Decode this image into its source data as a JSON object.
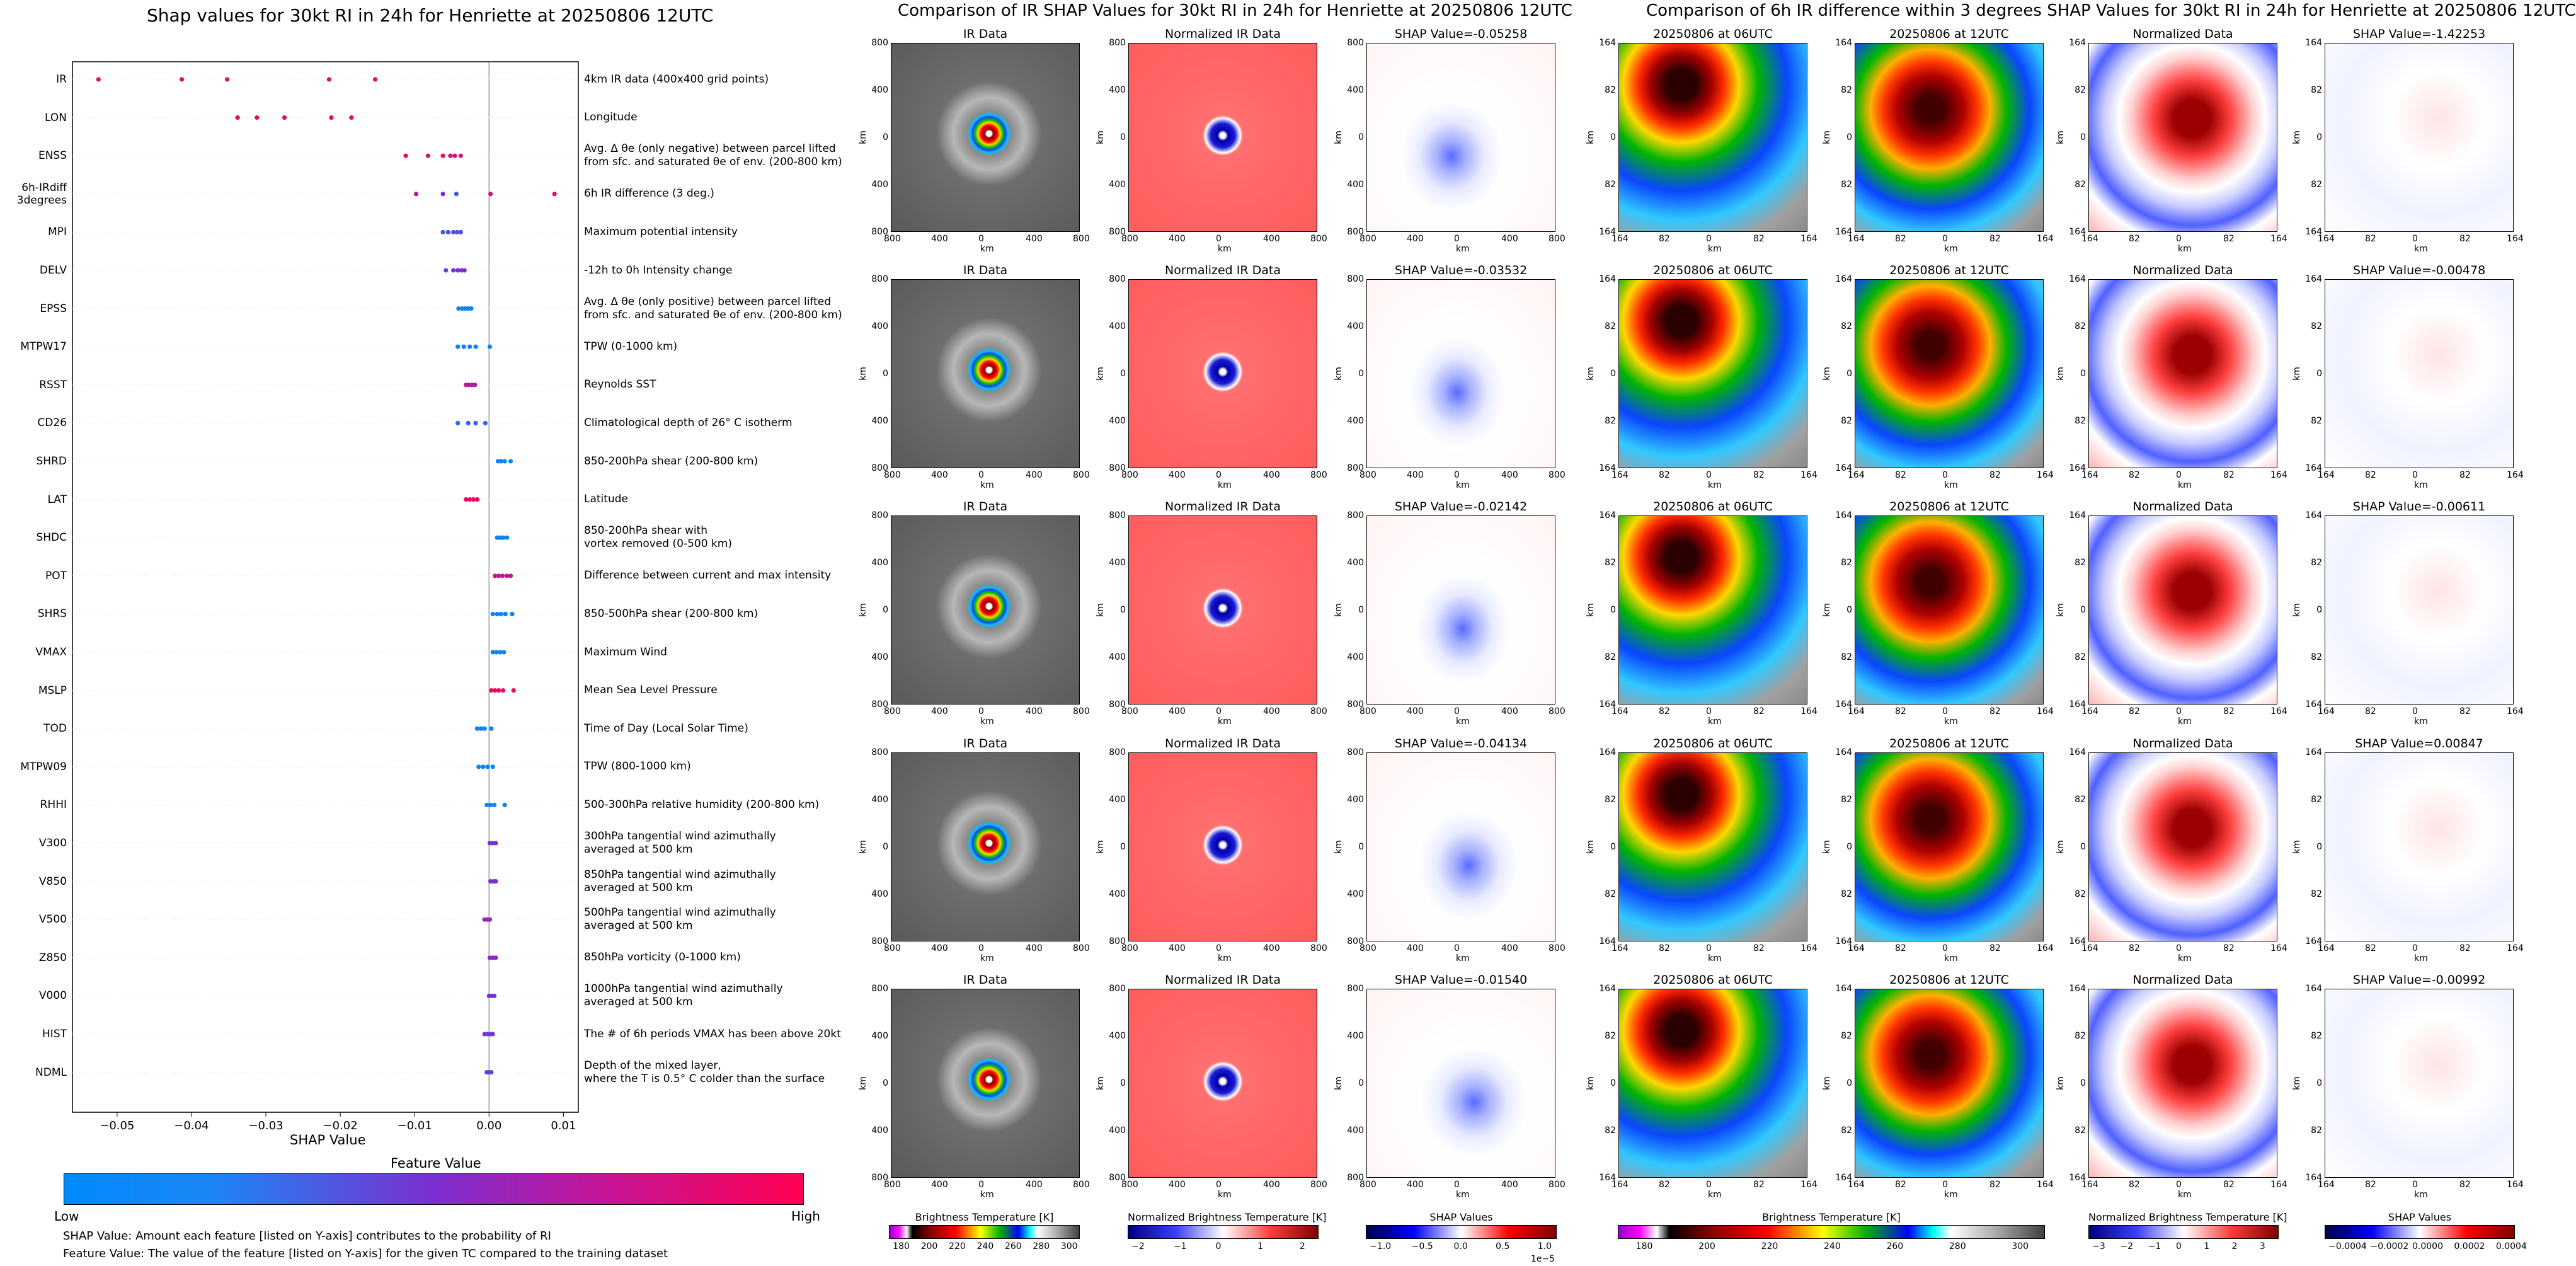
{
  "left_chart": {
    "title": "Shap values for 30kt RI in 24h for Henriette at 20250806 12UTC",
    "xlabel": "SHAP Value",
    "xticks": [
      "−0.05",
      "−0.04",
      "−0.03",
      "−0.02",
      "−0.01",
      "0.00",
      "0.01"
    ],
    "legend_title": "Feature Value",
    "legend_low": "Low",
    "legend_high": "High",
    "note1": "SHAP Value: Amount each feature [listed on Y-axis] contributes to the probability of RI",
    "note2": "Feature Value: The value of the feature [listed on Y-axis] for the given TC compared to the training dataset"
  },
  "chart_data": {
    "type": "scatter",
    "title": "Shap values for 30kt RI in 24h for Henriette at 20250806 12UTC",
    "xlabel": "SHAP Value",
    "xlim": [
      -0.056,
      0.012
    ],
    "grid": false,
    "colorbar": {
      "title": "Feature Value",
      "low": "Low",
      "high": "High",
      "low_color": "#008bfb",
      "high_color": "#ff0052"
    },
    "features": [
      {
        "name": "IR",
        "desc": "4km IR data (400x400 grid points)",
        "points": [
          [
            -0.0525,
            0.9
          ],
          [
            -0.0413,
            0.9
          ],
          [
            -0.0352,
            0.9
          ],
          [
            -0.0215,
            0.9
          ],
          [
            -0.0153,
            0.9
          ]
        ]
      },
      {
        "name": "LON",
        "desc": "Longitude",
        "points": [
          [
            -0.0338,
            0.9
          ],
          [
            -0.0312,
            0.9
          ],
          [
            -0.0275,
            0.9
          ],
          [
            -0.0212,
            0.9
          ],
          [
            -0.0185,
            0.9
          ]
        ]
      },
      {
        "name": "ENSS",
        "desc": "Avg. Δ θe (only negative) between parcel lifted\nfrom sfc. and saturated θe of env. (200-800 km)",
        "points": [
          [
            -0.0112,
            0.95
          ],
          [
            -0.0082,
            0.9
          ],
          [
            -0.0062,
            0.9
          ],
          [
            -0.0052,
            0.85
          ],
          [
            -0.0046,
            0.85
          ],
          [
            -0.0038,
            0.8
          ]
        ]
      },
      {
        "name": "6h-IRdiff\n3degrees",
        "desc": "6h IR difference (3 deg.)",
        "points": [
          [
            -0.0098,
            0.7
          ],
          [
            -0.0062,
            0.5
          ],
          [
            -0.0044,
            0.3
          ],
          [
            0.0002,
            0.85
          ],
          [
            0.0088,
            0.9
          ]
        ]
      },
      {
        "name": "MPI",
        "desc": "Maximum potential intensity",
        "points": [
          [
            -0.0062,
            0.3
          ],
          [
            -0.0055,
            0.3
          ],
          [
            -0.0048,
            0.3
          ],
          [
            -0.0043,
            0.3
          ],
          [
            -0.0038,
            0.3
          ]
        ]
      },
      {
        "name": "DELV",
        "desc": "-12h to 0h Intensity change",
        "points": [
          [
            -0.0058,
            0.4
          ],
          [
            -0.0048,
            0.5
          ],
          [
            -0.0042,
            0.5
          ],
          [
            -0.0037,
            0.5
          ],
          [
            -0.0033,
            0.5
          ]
        ]
      },
      {
        "name": "EPSS",
        "desc": "Avg. Δ θe (only positive) between parcel lifted\nfrom sfc. and saturated θe of env. (200-800 km)",
        "points": [
          [
            -0.0041,
            0.05
          ],
          [
            -0.0036,
            0.05
          ],
          [
            -0.0032,
            0.05
          ],
          [
            -0.0028,
            0.05
          ],
          [
            -0.0024,
            0.05
          ]
        ]
      },
      {
        "name": "MTPW17",
        "desc": "TPW (0-1000 km)",
        "points": [
          [
            -0.0042,
            0.05
          ],
          [
            -0.0034,
            0.05
          ],
          [
            -0.0026,
            0.05
          ],
          [
            -0.0018,
            0.05
          ],
          [
            0.0001,
            0.05
          ]
        ]
      },
      {
        "name": "RSST",
        "desc": "Reynolds SST",
        "points": [
          [
            -0.0031,
            0.7
          ],
          [
            -0.0027,
            0.7
          ],
          [
            -0.0023,
            0.7
          ],
          [
            -0.0019,
            0.7
          ]
        ]
      },
      {
        "name": "CD26",
        "desc": "Climatological depth of 26° C isotherm",
        "points": [
          [
            -0.0042,
            0.2
          ],
          [
            -0.0028,
            0.2
          ],
          [
            -0.0018,
            0.2
          ],
          [
            -0.0005,
            0.2
          ]
        ]
      },
      {
        "name": "SHRD",
        "desc": "850-200hPa shear (200-800 km)",
        "points": [
          [
            0.0012,
            0.05
          ],
          [
            0.0016,
            0.05
          ],
          [
            0.0021,
            0.05
          ],
          [
            0.0029,
            0.05
          ]
        ]
      },
      {
        "name": "LAT",
        "desc": "Latitude",
        "points": [
          [
            -0.0031,
            0.95
          ],
          [
            -0.0026,
            0.95
          ],
          [
            -0.0021,
            0.95
          ],
          [
            -0.0016,
            0.95
          ]
        ]
      },
      {
        "name": "SHDC",
        "desc": "850-200hPa shear with\nvortex removed (0-500 km)",
        "points": [
          [
            0.0011,
            0.05
          ],
          [
            0.0015,
            0.05
          ],
          [
            0.0019,
            0.05
          ],
          [
            0.0024,
            0.05
          ]
        ]
      },
      {
        "name": "POT",
        "desc": "Difference between current and max intensity",
        "points": [
          [
            0.0008,
            0.75
          ],
          [
            0.0013,
            0.75
          ],
          [
            0.0018,
            0.75
          ],
          [
            0.0024,
            0.75
          ],
          [
            0.0029,
            0.75
          ]
        ]
      },
      {
        "name": "SHRS",
        "desc": "850-500hPa shear (200-800 km)",
        "points": [
          [
            0.0005,
            0.05
          ],
          [
            0.0011,
            0.05
          ],
          [
            0.0016,
            0.05
          ],
          [
            0.0022,
            0.05
          ],
          [
            0.0031,
            0.05
          ]
        ]
      },
      {
        "name": "VMAX",
        "desc": "Maximum Wind",
        "points": [
          [
            0.0005,
            0.05
          ],
          [
            0.001,
            0.05
          ],
          [
            0.0015,
            0.05
          ],
          [
            0.002,
            0.05
          ]
        ]
      },
      {
        "name": "MSLP",
        "desc": "Mean Sea Level Pressure",
        "points": [
          [
            0.0003,
            0.95
          ],
          [
            0.0008,
            0.95
          ],
          [
            0.0013,
            0.95
          ],
          [
            0.0019,
            0.95
          ],
          [
            0.0033,
            0.95
          ]
        ]
      },
      {
        "name": "TOD",
        "desc": "Time of Day (Local Solar Time)",
        "points": [
          [
            -0.0016,
            0.05
          ],
          [
            -0.0011,
            0.05
          ],
          [
            -0.0006,
            0.05
          ],
          [
            0.0003,
            0.05
          ]
        ]
      },
      {
        "name": "MTPW09",
        "desc": "TPW (800-1000 km)",
        "points": [
          [
            -0.0014,
            0.05
          ],
          [
            -0.0008,
            0.05
          ],
          [
            -0.0002,
            0.05
          ],
          [
            0.0005,
            0.05
          ]
        ]
      },
      {
        "name": "RHHI",
        "desc": "500-300hPa relative humidity (200-800 km)",
        "points": [
          [
            -0.0003,
            0.05
          ],
          [
            0.0002,
            0.05
          ],
          [
            0.0007,
            0.05
          ],
          [
            0.0021,
            0.05
          ]
        ]
      },
      {
        "name": "V300",
        "desc": "300hPa tangential wind azimuthally\naveraged at 500 km",
        "points": [
          [
            0.0001,
            0.5
          ],
          [
            0.0005,
            0.5
          ],
          [
            0.0009,
            0.5
          ]
        ]
      },
      {
        "name": "V850",
        "desc": "850hPa tangential wind azimuthally\naveraged at 500 km",
        "points": [
          [
            0.0002,
            0.5
          ],
          [
            0.0006,
            0.5
          ],
          [
            0.0009,
            0.5
          ]
        ]
      },
      {
        "name": "V500",
        "desc": "500hPa tangential wind azimuthally\naveraged at 500 km",
        "points": [
          [
            -0.0006,
            0.6
          ],
          [
            -0.0002,
            0.6
          ],
          [
            0.0001,
            0.6
          ]
        ]
      },
      {
        "name": "Z850",
        "desc": "850hPa vorticity (0-1000 km)",
        "points": [
          [
            0.0001,
            0.55
          ],
          [
            0.0005,
            0.55
          ],
          [
            0.0009,
            0.55
          ]
        ]
      },
      {
        "name": "V000",
        "desc": "1000hPa tangential wind azimuthally\naveraged at 500 km",
        "points": [
          [
            0.0,
            0.5
          ],
          [
            0.0004,
            0.5
          ],
          [
            0.0007,
            0.5
          ]
        ]
      },
      {
        "name": "HIST",
        "desc": "The # of 6h periods VMAX has been above 20kt",
        "points": [
          [
            -0.0006,
            0.45
          ],
          [
            -0.0002,
            0.45
          ],
          [
            0.0002,
            0.45
          ],
          [
            0.0005,
            0.45
          ]
        ]
      },
      {
        "name": "NDML",
        "desc": "Depth of the mixed layer,\nwhere the T is 0.5° C colder than the surface",
        "points": [
          [
            -0.0003,
            0.4
          ],
          [
            0.0,
            0.4
          ],
          [
            0.0003,
            0.4
          ]
        ]
      }
    ]
  },
  "middle": {
    "title": "Comparison of IR SHAP Values for 30kt RI in 24h for Henriette at 20250806 12UTC",
    "col_titles": [
      "IR Data",
      "Normalized IR Data"
    ],
    "shap_titles": [
      "SHAP Value=-0.05258",
      "SHAP Value=-0.03532",
      "SHAP Value=-0.02142",
      "SHAP Value=-0.04134",
      "SHAP Value=-0.01540"
    ],
    "yticks": [
      "800",
      "400",
      "0",
      "400",
      "800"
    ],
    "xticks": [
      "800",
      "400",
      "0",
      "400",
      "800"
    ],
    "axis_label": "km",
    "cbar_ir_label": "Brightness Temperature [K]",
    "cbar_ir_ticks": [
      "180",
      "200",
      "220",
      "240",
      "260",
      "280",
      "300"
    ],
    "cbar_norm_label": "Normalized Brightness Temperature [K]",
    "cbar_norm_ticks": [
      "−2",
      "−1",
      "0",
      "1",
      "2"
    ],
    "cbar_shap_label": "SHAP Values",
    "cbar_shap_ticks": [
      "−1.0",
      "−0.5",
      "0.0",
      "0.5",
      "1.0"
    ],
    "cbar_shap_exp": "1e−5"
  },
  "right": {
    "title": "Comparison of 6h IR difference within 3 degrees SHAP Values for 30kt RI in 24h for Henriette at 20250806 12UTC",
    "col_titles": [
      "20250806 at 06UTC",
      "20250806 at 12UTC",
      "Normalized Data"
    ],
    "shap_titles": [
      "SHAP Value=-1.42253",
      "SHAP Value=-0.00478",
      "SHAP Value=-0.00611",
      "SHAP Value=0.00847",
      "SHAP Value=-0.00992"
    ],
    "yticks": [
      "164",
      "82",
      "0",
      "82",
      "164"
    ],
    "xticks": [
      "164",
      "82",
      "0",
      "82",
      "164"
    ],
    "axis_label": "km",
    "cbar_ir_label": "Brightness Temperature [K]",
    "cbar_ir_ticks": [
      "180",
      "200",
      "220",
      "240",
      "260",
      "280",
      "300"
    ],
    "cbar_norm_label": "Normalized Brightness Temperature [K]",
    "cbar_norm_ticks": [
      "−3",
      "−2",
      "−1",
      "0",
      "1",
      "2",
      "3"
    ],
    "cbar_shap_label": "SHAP Values",
    "cbar_shap_ticks": [
      "−0.0004",
      "−0.0002",
      "0.0000",
      "0.0002",
      "0.0004"
    ]
  },
  "colors": {
    "low": "#008bfb",
    "high": "#ff0052",
    "mid": "#7b2fd0"
  }
}
